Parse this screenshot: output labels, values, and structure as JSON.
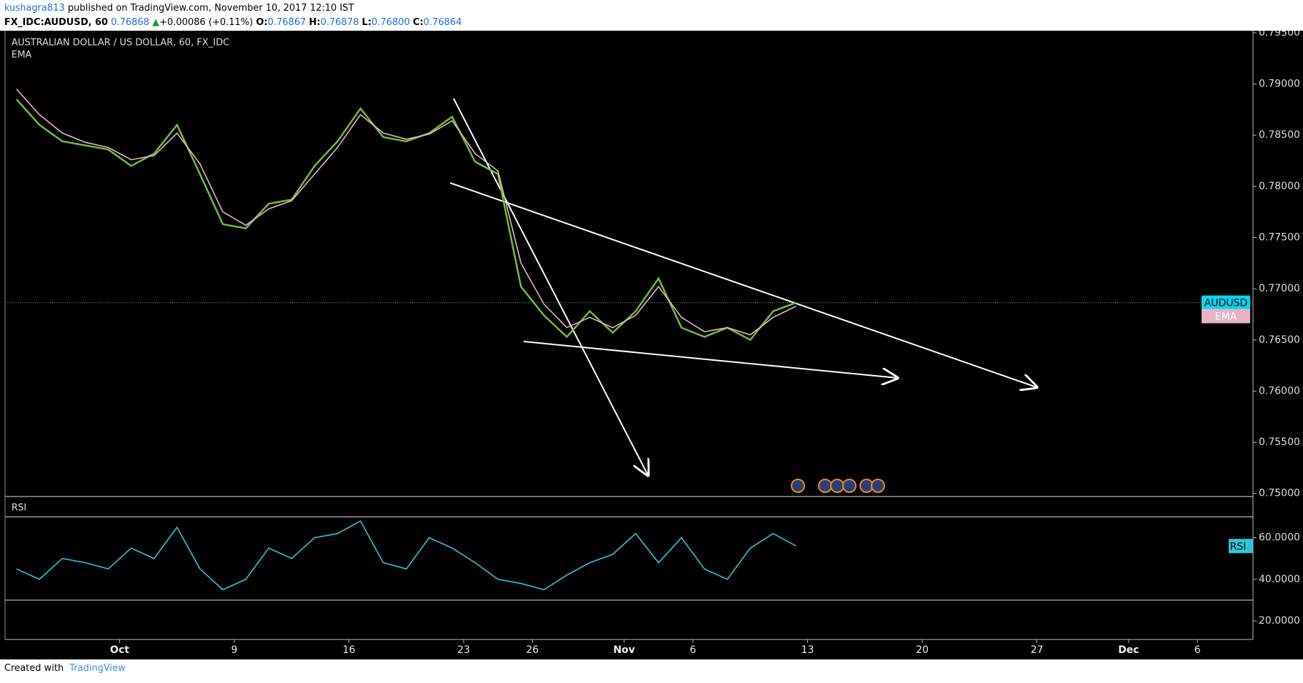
{
  "header": {
    "user": "kushagra813",
    "published": "published on TradingView.com, November 10, 2017 12:10 IST",
    "symbol": "FX_IDC:AUDUSD, 60",
    "last": "0.76868",
    "change": "+0.00086 (+0.11%)",
    "o_label": "O:",
    "o": "0.76867",
    "h_label": "H:",
    "h": "0.76878",
    "l_label": "L:",
    "l": "0.76800",
    "c_label": "C:",
    "c": "0.76864"
  },
  "footer": {
    "created": "Created with",
    "brand": "TradingView"
  },
  "chart_data": [
    {
      "type": "line",
      "title": "AUSTRALIAN DOLLAR / US DOLLAR, 60, FX_IDC",
      "categories": [
        null,
        null,
        null,
        null,
        null,
        "Oct",
        null,
        null,
        null,
        null,
        "9",
        null,
        null,
        null,
        null,
        "16",
        null,
        null,
        null,
        null,
        "23",
        null,
        null,
        "26",
        null,
        null,
        null,
        "Nov",
        null,
        null,
        "6",
        null,
        null,
        null,
        null,
        "13",
        null,
        null,
        null,
        null,
        "20",
        null,
        null,
        null,
        null,
        "27",
        null,
        null,
        null,
        "Dec",
        null,
        null,
        "6",
        null,
        null
      ],
      "series": [
        {
          "name": "AUDUSD",
          "color": "#6fbf3a",
          "values": [
            0.7885,
            0.786,
            0.7844,
            0.784,
            0.7836,
            0.782,
            0.7832,
            0.786,
            0.7812,
            0.7763,
            0.7759,
            0.7783,
            0.7787,
            0.782,
            0.7844,
            0.7876,
            0.7848,
            0.7844,
            0.7852,
            0.7868,
            0.7824,
            0.7812,
            0.7702,
            0.7674,
            0.7653,
            0.7678,
            0.7657,
            0.7678,
            0.771,
            0.7662,
            0.7653,
            0.7662,
            0.765,
            0.7678,
            0.76864,
            null,
            null,
            null,
            null,
            null,
            null,
            null,
            null,
            null,
            null,
            null,
            null,
            null,
            null,
            null,
            null,
            null,
            null,
            null,
            null
          ]
        },
        {
          "name": "EMA",
          "color": "#e8b4c4",
          "values": [
            0.7895,
            0.787,
            0.7852,
            0.7843,
            0.7838,
            0.7826,
            0.783,
            0.7852,
            0.7822,
            0.7775,
            0.7762,
            0.7778,
            0.7786,
            0.7812,
            0.7838,
            0.787,
            0.7852,
            0.7846,
            0.7851,
            0.7864,
            0.7832,
            0.7815,
            0.7725,
            0.7685,
            0.7662,
            0.7672,
            0.7662,
            0.7674,
            0.7702,
            0.7672,
            0.7658,
            0.7662,
            0.7655,
            0.7672,
            0.7683,
            null,
            null,
            null,
            null,
            null,
            null,
            null,
            null,
            null,
            null,
            null,
            null,
            null,
            null,
            null,
            null,
            null,
            null,
            null,
            null
          ]
        }
      ],
      "ylim": [
        0.7497,
        0.7952
      ],
      "yticks": [
        {
          "value": 0.75,
          "label": "0.75000"
        },
        {
          "value": 0.755,
          "label": "0.75500"
        },
        {
          "value": 0.76,
          "label": "0.76000"
        },
        {
          "value": 0.765,
          "label": "0.76500"
        },
        {
          "value": 0.77,
          "label": "0.77000"
        },
        {
          "value": 0.775,
          "label": "0.77500"
        },
        {
          "value": 0.78,
          "label": "0.78000"
        },
        {
          "value": 0.785,
          "label": "0.78500"
        },
        {
          "value": 0.79,
          "label": "0.79000"
        },
        {
          "value": 0.795,
          "label": "0.79500"
        }
      ],
      "grid": false
    },
    {
      "type": "line",
      "title": "RSI",
      "series": [
        {
          "name": "RSI",
          "color": "#2ec7d6",
          "values": [
            45,
            40,
            50,
            48,
            45,
            55,
            50,
            65,
            45,
            35,
            40,
            55,
            50,
            60,
            62,
            68,
            48,
            45,
            60,
            55,
            48,
            40,
            38,
            35,
            42,
            48,
            52,
            62,
            48,
            60,
            45,
            40,
            55,
            62,
            56,
            null,
            null,
            null,
            null,
            null,
            null,
            null,
            null,
            null,
            null,
            null,
            null,
            null,
            null,
            null,
            null,
            null,
            null,
            null,
            null
          ]
        }
      ],
      "levels": [
        30,
        70
      ],
      "ylim": [
        11.1,
        79.1
      ],
      "yticks": [
        {
          "value": 20,
          "label": "20.0000"
        },
        {
          "value": 40,
          "label": "40.0000"
        },
        {
          "value": 60,
          "label": "60.0000"
        }
      ],
      "grid": false
    }
  ]
}
